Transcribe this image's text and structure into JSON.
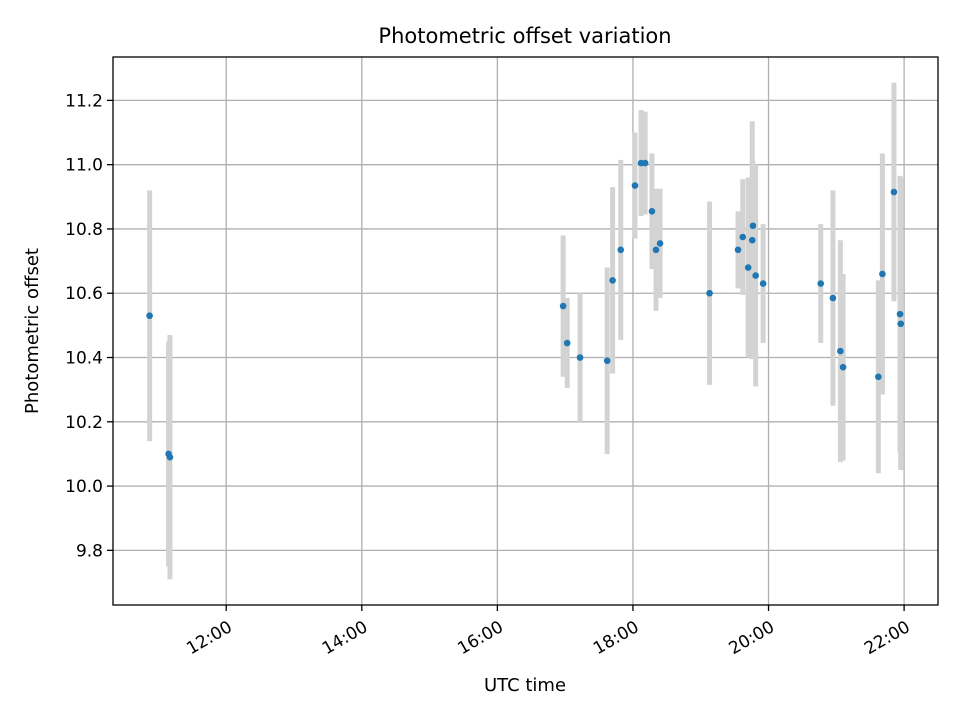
{
  "chart_data": {
    "type": "scatter",
    "title": "Photometric offset variation",
    "xlabel": "UTC time",
    "ylabel": "Photometric offset",
    "x_unit": "hours (UTC)",
    "xlim": [
      10.33,
      22.5
    ],
    "ylim": [
      9.63,
      11.335
    ],
    "x_ticks": [
      {
        "value": 12,
        "label": "12:00"
      },
      {
        "value": 14,
        "label": "14:00"
      },
      {
        "value": 16,
        "label": "16:00"
      },
      {
        "value": 18,
        "label": "18:00"
      },
      {
        "value": 20,
        "label": "20:00"
      },
      {
        "value": 22,
        "label": "22:00"
      }
    ],
    "y_ticks": [
      {
        "value": 9.8,
        "label": "9.8"
      },
      {
        "value": 10.0,
        "label": "10.0"
      },
      {
        "value": 10.2,
        "label": "10.2"
      },
      {
        "value": 10.4,
        "label": "10.4"
      },
      {
        "value": 10.6,
        "label": "10.6"
      },
      {
        "value": 10.8,
        "label": "10.8"
      },
      {
        "value": 11.0,
        "label": "11.0"
      },
      {
        "value": 11.2,
        "label": "11.2"
      }
    ],
    "grid": true,
    "point_color": "#1f77b4",
    "errorbar_color": "#d3d3d3",
    "points": [
      {
        "x": 10.87,
        "y": 10.53,
        "err": 0.39
      },
      {
        "x": 11.15,
        "y": 10.1,
        "err": 0.35
      },
      {
        "x": 11.17,
        "y": 10.09,
        "err": 0.38
      },
      {
        "x": 16.97,
        "y": 10.56,
        "err": 0.22
      },
      {
        "x": 17.03,
        "y": 10.445,
        "err": 0.14
      },
      {
        "x": 17.22,
        "y": 10.4,
        "err": 0.2
      },
      {
        "x": 17.62,
        "y": 10.39,
        "err": 0.29
      },
      {
        "x": 17.7,
        "y": 10.64,
        "err": 0.29
      },
      {
        "x": 17.82,
        "y": 10.735,
        "err": 0.28
      },
      {
        "x": 18.03,
        "y": 10.935,
        "err": 0.165
      },
      {
        "x": 18.12,
        "y": 11.005,
        "err": 0.165
      },
      {
        "x": 18.18,
        "y": 11.005,
        "err": 0.16
      },
      {
        "x": 18.28,
        "y": 10.855,
        "err": 0.18
      },
      {
        "x": 18.34,
        "y": 10.735,
        "err": 0.19
      },
      {
        "x": 18.4,
        "y": 10.755,
        "err": 0.17
      },
      {
        "x": 19.13,
        "y": 10.6,
        "err": 0.285
      },
      {
        "x": 19.55,
        "y": 10.735,
        "err": 0.12
      },
      {
        "x": 19.62,
        "y": 10.775,
        "err": 0.18
      },
      {
        "x": 19.7,
        "y": 10.68,
        "err": 0.28
      },
      {
        "x": 19.76,
        "y": 10.765,
        "err": 0.37
      },
      {
        "x": 19.77,
        "y": 10.81,
        "err": 0.2
      },
      {
        "x": 19.81,
        "y": 10.655,
        "err": 0.345
      },
      {
        "x": 19.92,
        "y": 10.63,
        "err": 0.185
      },
      {
        "x": 20.77,
        "y": 10.63,
        "err": 0.185
      },
      {
        "x": 20.95,
        "y": 10.585,
        "err": 0.335
      },
      {
        "x": 21.06,
        "y": 10.42,
        "err": 0.345
      },
      {
        "x": 21.1,
        "y": 10.37,
        "err": 0.29
      },
      {
        "x": 21.62,
        "y": 10.34,
        "err": 0.3
      },
      {
        "x": 21.68,
        "y": 10.66,
        "err": 0.375
      },
      {
        "x": 21.85,
        "y": 10.915,
        "err": 0.34
      },
      {
        "x": 21.94,
        "y": 10.535,
        "err": 0.43
      },
      {
        "x": 21.95,
        "y": 10.505,
        "err": 0.455
      }
    ]
  }
}
